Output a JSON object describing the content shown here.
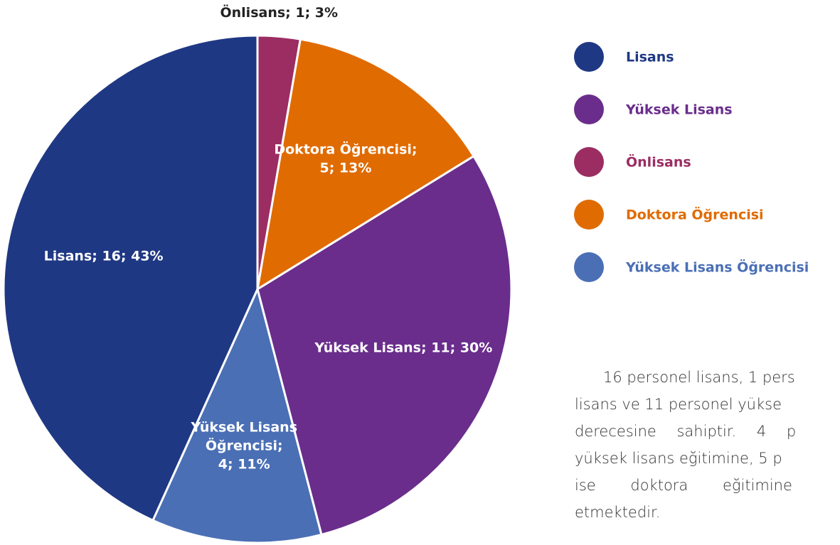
{
  "chart_data": {
    "type": "pie",
    "categories": [
      "Önlisans",
      "Doktora Öğrencisi",
      "Yüksek Lisans",
      "Yüksek Lisans Öğrencisi",
      "Lisans"
    ],
    "values": [
      1,
      5,
      11,
      4,
      16
    ],
    "value_labels": [
      [
        "Önlisans; 1; 3%"
      ],
      [
        "Doktora Öğrencisi;",
        "5; 13%"
      ],
      [
        "Yüksek Lisans; 11; 30%"
      ],
      [
        "Yüksek Lisans",
        "Öğrencisi;",
        "4; 11%"
      ],
      [
        "Lisans; 16; 43%"
      ]
    ],
    "colors": [
      "#9b2d62",
      "#e06b00",
      "#6a2d8c",
      "#4a6fb5",
      "#1f3884"
    ],
    "legend": [
      {
        "name": "Lisans",
        "color": "#1f3884"
      },
      {
        "name": "Yüksek Lisans",
        "color": "#6a2d8c"
      },
      {
        "name": "Önlisans",
        "color": "#9b2d62"
      },
      {
        "name": "Doktora Öğrencisi",
        "color": "#e06b00"
      },
      {
        "name": "Yüksek Lisans Öğrencisi",
        "color": "#4a6fb5"
      }
    ]
  },
  "paragraph": [
    "16 personel lisans, 1 pers",
    "lisans ve 11 personel yükse",
    "derecesine sahiptir. 4 p",
    "yüksek lisans eğitimine, 5 p",
    "ise doktora eğitimine",
    "etmektedir."
  ]
}
